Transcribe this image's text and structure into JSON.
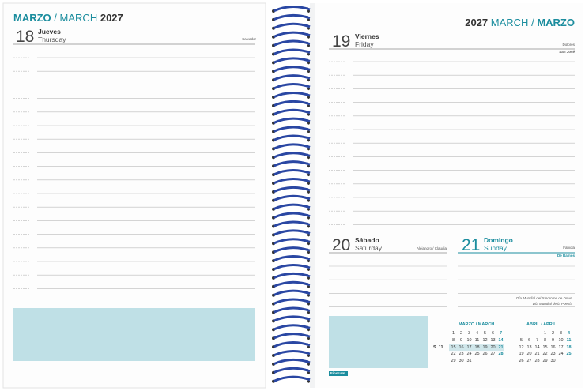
{
  "left_page": {
    "header": {
      "month_es": "MARZO",
      "slash": "/",
      "month_en": "MARCH",
      "year": "2027"
    },
    "day": {
      "number": "18",
      "name_es": "Jueves",
      "name_en": "Thursday",
      "saint": "Salvador"
    }
  },
  "right_page": {
    "header": {
      "year": "2027",
      "month_en": "MARCH",
      "slash": "/",
      "month_es": "MARZO"
    },
    "days": [
      {
        "number": "19",
        "name_es": "Viernes",
        "name_en": "Friday",
        "saint": "Dolores",
        "note": "San José"
      },
      {
        "number": "20",
        "name_es": "Sábado",
        "name_en": "Saturday",
        "saint": "Alejandro / Claudia"
      },
      {
        "number": "21",
        "name_es": "Domingo",
        "name_en": "Sunday",
        "saint": "Fabiola",
        "note": "De Ramos",
        "observances": [
          "Día Mundial del Síndrome de Down",
          "Día Mundial de la Poesía"
        ]
      }
    ],
    "mini_calendars": [
      {
        "title": "MARZO / MARCH",
        "week_label": "S. 11",
        "weeks": [
          [
            "1",
            "2",
            "3",
            "4",
            "5",
            "6",
            "7"
          ],
          [
            "8",
            "9",
            "10",
            "11",
            "12",
            "13",
            "14"
          ],
          [
            "15",
            "16",
            "17",
            "18",
            "19",
            "20",
            "21"
          ],
          [
            "22",
            "23",
            "24",
            "25",
            "26",
            "27",
            "28"
          ],
          [
            "29",
            "30",
            "31"
          ]
        ]
      },
      {
        "title": "ABRIL / APRIL",
        "weeks": [
          [
            null,
            null,
            null,
            "1",
            "2",
            "3",
            "4"
          ],
          [
            "5",
            "6",
            "7",
            "8",
            "9",
            "10",
            "11"
          ],
          [
            "12",
            "13",
            "14",
            "15",
            "16",
            "17",
            "18"
          ],
          [
            "19",
            "20",
            "21",
            "22",
            "23",
            "24",
            "25"
          ],
          [
            "26",
            "27",
            "28",
            "29",
            "30"
          ]
        ]
      }
    ],
    "brand": "Finocam"
  }
}
